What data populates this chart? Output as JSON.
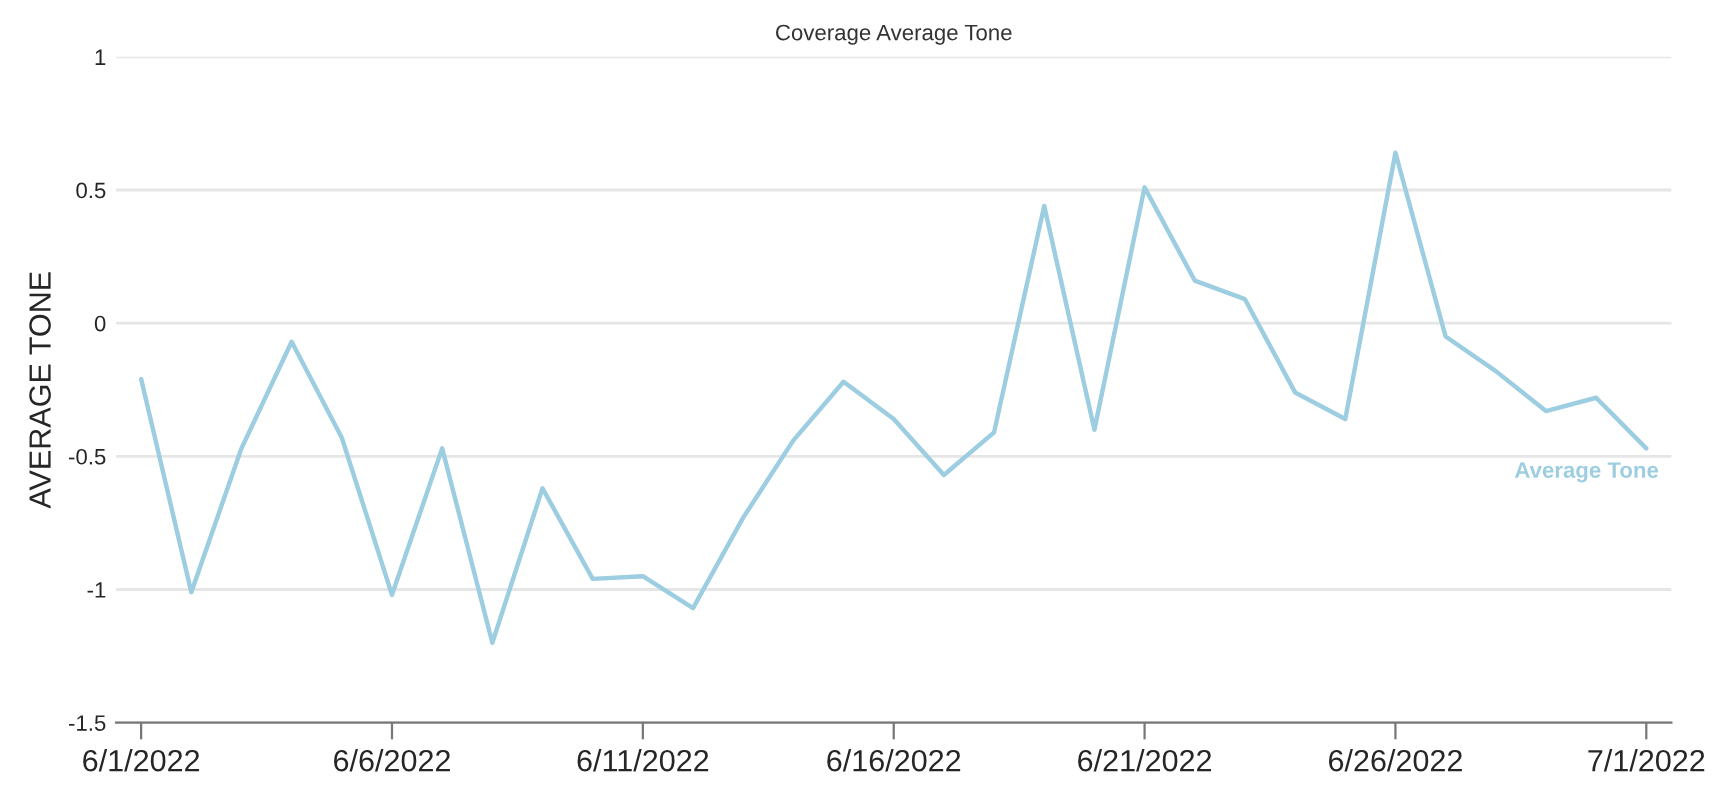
{
  "chart_data": {
    "type": "line",
    "title": "Coverage Average Tone",
    "ylabel": "AVERAGE TONE",
    "x": [
      "2022-06-01",
      "2022-06-02",
      "2022-06-03",
      "2022-06-04",
      "2022-06-05",
      "2022-06-06",
      "2022-06-07",
      "2022-06-08",
      "2022-06-09",
      "2022-06-10",
      "2022-06-11",
      "2022-06-12",
      "2022-06-13",
      "2022-06-14",
      "2022-06-15",
      "2022-06-16",
      "2022-06-17",
      "2022-06-18",
      "2022-06-19",
      "2022-06-20",
      "2022-06-21",
      "2022-06-22",
      "2022-06-23",
      "2022-06-24",
      "2022-06-25",
      "2022-06-26",
      "2022-06-27",
      "2022-06-28",
      "2022-06-29",
      "2022-06-30",
      "2022-07-01"
    ],
    "series": [
      {
        "name": "Average Tone",
        "color": "#9ccde0",
        "values": [
          -0.21,
          -1.01,
          -0.47,
          -0.07,
          -0.43,
          -1.02,
          -0.47,
          -1.2,
          -0.62,
          -0.96,
          -0.95,
          -1.07,
          -0.73,
          -0.44,
          -0.22,
          -0.36,
          -0.57,
          -0.41,
          0.44,
          -0.4,
          0.51,
          0.16,
          0.09,
          -0.26,
          -0.36,
          0.64,
          -0.05,
          -0.18,
          -0.33,
          -0.28,
          -0.47
        ]
      }
    ],
    "xlim": [
      "2022-05-31T12:00",
      "2022-07-01T12:00"
    ],
    "xticks": [
      {
        "value": "2022-06-01",
        "label": "6/1/2022"
      },
      {
        "value": "2022-06-06",
        "label": "6/6/2022"
      },
      {
        "value": "2022-06-11",
        "label": "6/11/2022"
      },
      {
        "value": "2022-06-16",
        "label": "6/16/2022"
      },
      {
        "value": "2022-06-21",
        "label": "6/21/2022"
      },
      {
        "value": "2022-06-26",
        "label": "6/26/2022"
      },
      {
        "value": "2022-07-01",
        "label": "7/1/2022"
      }
    ],
    "ylim": [
      -1.5,
      1
    ],
    "yticks": [
      -1.5,
      -1,
      -0.5,
      0,
      0.5,
      1
    ],
    "grid": "y",
    "legend": false,
    "marker": "none",
    "line_style": "solid"
  }
}
